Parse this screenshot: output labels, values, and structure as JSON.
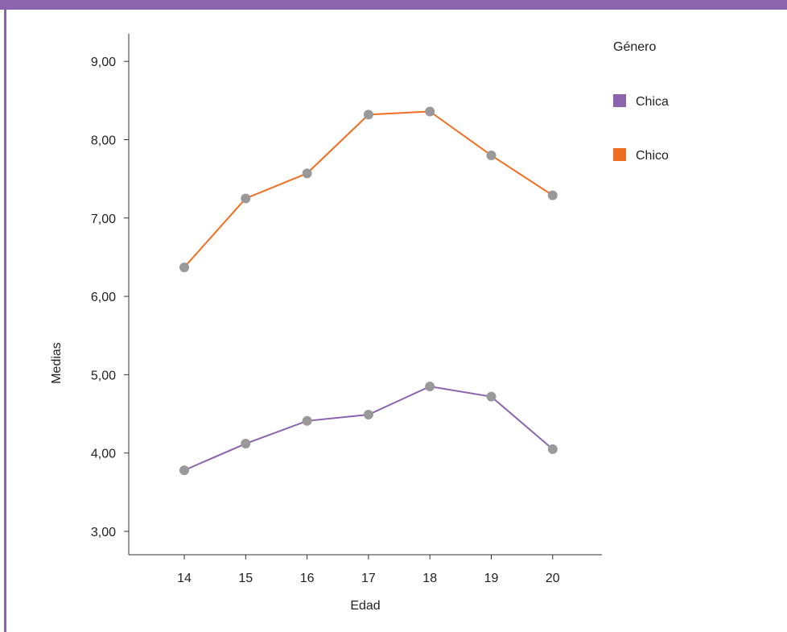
{
  "chart_data": {
    "type": "line",
    "title": "",
    "xlabel": "Edad",
    "ylabel": "Medias",
    "x": [
      14,
      15,
      16,
      17,
      18,
      19,
      20
    ],
    "ylim": [
      2.7,
      9.4
    ],
    "yticks": [
      "3,00",
      "4,00",
      "5,00",
      "6,00",
      "7,00",
      "8,00",
      "9,00"
    ],
    "ytick_values": [
      3,
      4,
      5,
      6,
      7,
      8,
      9
    ],
    "grid": false,
    "legend": {
      "title": "Género",
      "placement": "top-right"
    },
    "series": [
      {
        "name": "Chica",
        "color": "#8c63ad",
        "values": [
          3.78,
          4.12,
          4.41,
          4.49,
          4.85,
          4.72,
          4.05
        ]
      },
      {
        "name": "Chico",
        "color": "#f06e22",
        "values": [
          6.37,
          7.25,
          7.57,
          8.32,
          8.36,
          7.8,
          7.29
        ]
      }
    ],
    "marker_color": "#999999"
  }
}
